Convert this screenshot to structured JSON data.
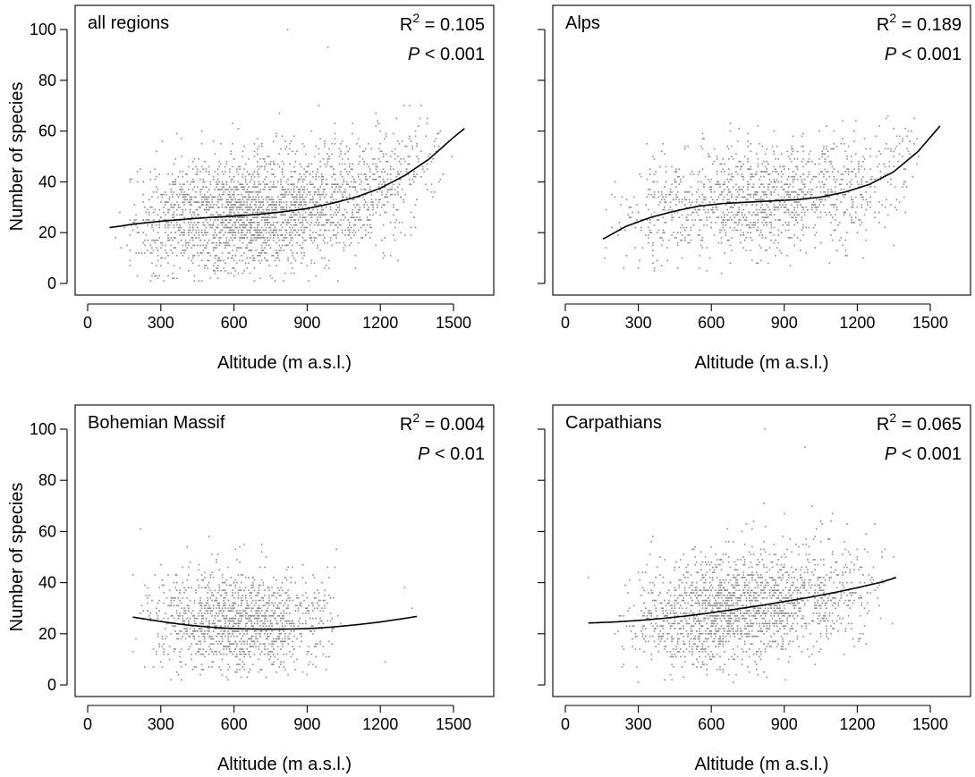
{
  "chart_data": [
    {
      "type": "scatter",
      "panel_label": "all regions",
      "r2_label": "R",
      "r2_sup": "2",
      "r2_value": " = 0.105",
      "p_label": "P",
      "p_value": " < 0.001",
      "xlabel": "Altitude (m a.s.l.)",
      "ylabel": "Number of species",
      "show_y_tick_labels": true,
      "xlim": [
        0,
        1500
      ],
      "ylim": [
        0,
        100
      ],
      "x_ticks": [
        0,
        300,
        600,
        900,
        1200,
        1500
      ],
      "y_ticks": [
        0,
        20,
        40,
        60,
        80,
        100
      ],
      "scatter": {
        "n": 2600,
        "x_range": [
          110,
          1500
        ],
        "x_mode": 620,
        "y_mean_offset": 0,
        "y_spread": 12,
        "y_max": 100,
        "y_min": 1,
        "color": "#8c8c8c"
      },
      "fit_curve": {
        "x": [
          90,
          200,
          300,
          400,
          500,
          600,
          700,
          800,
          900,
          1000,
          1100,
          1200,
          1300,
          1400,
          1500,
          1545
        ],
        "y": [
          22,
          23.5,
          24.5,
          25.3,
          26,
          26.5,
          27.2,
          28.2,
          29.5,
          31.5,
          34,
          37.5,
          42.5,
          49,
          57.5,
          61
        ]
      },
      "outliers": [
        {
          "x": 820,
          "y": 100
        },
        {
          "x": 985,
          "y": 93
        }
      ]
    },
    {
      "type": "scatter",
      "panel_label": "Alps",
      "r2_label": "R",
      "r2_sup": "2",
      "r2_value": " = 0.189",
      "p_label": "P",
      "p_value": " < 0.001",
      "xlabel": "Altitude (m a.s.l.)",
      "ylabel": "",
      "show_y_tick_labels": false,
      "xlim": [
        0,
        1500
      ],
      "ylim": [
        0,
        100
      ],
      "x_ticks": [
        0,
        300,
        600,
        900,
        1200,
        1500
      ],
      "y_ticks": [
        0,
        20,
        40,
        60,
        80,
        100
      ],
      "scatter": {
        "n": 1400,
        "x_range": [
          155,
          1500
        ],
        "x_mode": 800,
        "y_mean_offset": 1,
        "y_spread": 11,
        "y_max": 88,
        "y_min": 4,
        "color": "#8c8c8c"
      },
      "fit_curve": {
        "x": [
          155,
          250,
          350,
          450,
          550,
          650,
          750,
          850,
          950,
          1050,
          1150,
          1250,
          1350,
          1450,
          1540
        ],
        "y": [
          17.5,
          22.5,
          26,
          28.5,
          30.5,
          31.5,
          32,
          32.5,
          33,
          34,
          36,
          39,
          44,
          52,
          62
        ]
      },
      "outliers": []
    },
    {
      "type": "scatter",
      "panel_label": "Bohemian Massif",
      "r2_label": "R",
      "r2_sup": "2",
      "r2_value": " = 0.004",
      "p_label": "P",
      "p_value": " < 0.01",
      "xlabel": "Altitude (m a.s.l.)",
      "ylabel": "Number of species",
      "show_y_tick_labels": true,
      "xlim": [
        0,
        1500
      ],
      "ylim": [
        0,
        100
      ],
      "x_ticks": [
        0,
        300,
        600,
        900,
        1200,
        1500
      ],
      "y_ticks": [
        0,
        20,
        40,
        60,
        80,
        100
      ],
      "scatter": {
        "n": 1350,
        "x_range": [
          180,
          1060
        ],
        "x_mode": 600,
        "y_mean_offset": 2,
        "y_spread": 10,
        "y_max": 62,
        "y_min": 2,
        "color": "#8c8c8c"
      },
      "fit_curve": {
        "x": [
          185,
          300,
          400,
          500,
          600,
          700,
          800,
          900,
          1000,
          1100,
          1200,
          1300,
          1350
        ],
        "y": [
          26.5,
          24.8,
          23.5,
          22.6,
          22,
          21.8,
          21.8,
          22,
          22.6,
          23.5,
          24.6,
          26,
          26.8
        ]
      },
      "outliers": [
        {
          "x": 1220,
          "y": 9
        },
        {
          "x": 1300,
          "y": 38
        },
        {
          "x": 1330,
          "y": 30
        }
      ]
    },
    {
      "type": "scatter",
      "panel_label": "Carpathians",
      "r2_label": "R",
      "r2_sup": "2",
      "r2_value": " = 0.065",
      "p_label": "P",
      "p_value": " < 0.001",
      "xlabel": "Altitude (m a.s.l.)",
      "ylabel": "",
      "show_y_tick_labels": false,
      "xlim": [
        0,
        1500
      ],
      "ylim": [
        0,
        100
      ],
      "x_ticks": [
        0,
        300,
        600,
        900,
        1200,
        1500
      ],
      "y_ticks": [
        0,
        20,
        40,
        60,
        80,
        100
      ],
      "scatter": {
        "n": 1900,
        "x_range": [
          200,
          1360
        ],
        "x_mode": 650,
        "y_mean_offset": 0,
        "y_spread": 11.5,
        "y_max": 83,
        "y_min": 1,
        "color": "#8c8c8c"
      },
      "fit_curve": {
        "x": [
          95,
          200,
          300,
          400,
          500,
          600,
          700,
          800,
          900,
          1000,
          1100,
          1200,
          1300,
          1360
        ],
        "y": [
          24.2,
          24.6,
          25.2,
          26,
          27,
          28.2,
          29.6,
          31,
          32.6,
          34.2,
          36,
          38,
          40.2,
          42
        ]
      },
      "outliers": [
        {
          "x": 820,
          "y": 100
        },
        {
          "x": 985,
          "y": 93
        },
        {
          "x": 95,
          "y": 42
        }
      ]
    }
  ]
}
